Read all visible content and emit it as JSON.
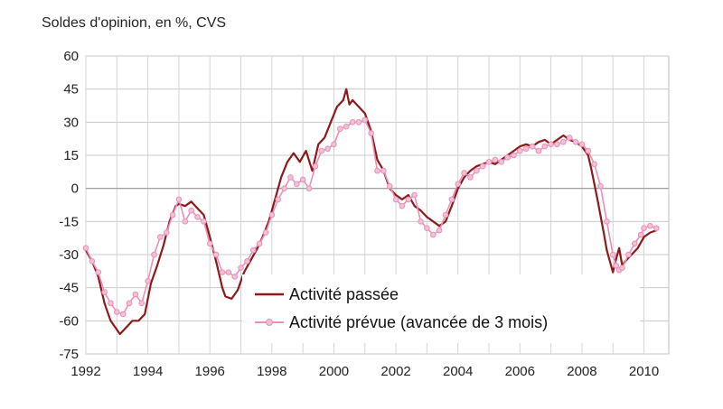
{
  "chart_data": {
    "type": "line",
    "title": "Soldes d'opinion, en %, CVS",
    "xlabel": "",
    "ylabel": "",
    "xlim": [
      1992,
      2010.8
    ],
    "ylim": [
      -75,
      60
    ],
    "x_ticks": [
      1992,
      1994,
      1996,
      1998,
      2000,
      2002,
      2004,
      2006,
      2008,
      2010
    ],
    "x_tick_labels": [
      "1992",
      "1994",
      "1996",
      "1998",
      "2000",
      "2002",
      "2004",
      "2006",
      "2008",
      "2010"
    ],
    "y_ticks": [
      60,
      45,
      30,
      15,
      0,
      -15,
      -30,
      -45,
      -60,
      -75
    ],
    "y_tick_labels": [
      "60",
      "45",
      "30",
      "15",
      "0",
      "-15",
      "-30",
      "-45",
      "-60",
      "-75"
    ],
    "grid": true,
    "legend_position": "bottom-center",
    "series": [
      {
        "name": "Activité passée",
        "color": "#8b1a1a",
        "marker": "none",
        "points": [
          [
            1992.0,
            -28
          ],
          [
            1992.2,
            -33
          ],
          [
            1992.4,
            -40
          ],
          [
            1992.6,
            -52
          ],
          [
            1992.8,
            -60
          ],
          [
            1993.0,
            -64
          ],
          [
            1993.1,
            -66
          ],
          [
            1993.3,
            -63
          ],
          [
            1993.5,
            -60
          ],
          [
            1993.7,
            -60
          ],
          [
            1993.9,
            -57
          ],
          [
            1994.0,
            -50
          ],
          [
            1994.1,
            -43
          ],
          [
            1994.3,
            -35
          ],
          [
            1994.5,
            -26
          ],
          [
            1994.7,
            -15
          ],
          [
            1994.9,
            -8
          ],
          [
            1995.0,
            -7
          ],
          [
            1995.2,
            -8
          ],
          [
            1995.4,
            -6
          ],
          [
            1995.6,
            -9
          ],
          [
            1995.8,
            -12
          ],
          [
            1996.0,
            -22
          ],
          [
            1996.2,
            -33
          ],
          [
            1996.4,
            -45
          ],
          [
            1996.5,
            -49
          ],
          [
            1996.7,
            -50
          ],
          [
            1996.9,
            -46
          ],
          [
            1997.1,
            -38
          ],
          [
            1997.3,
            -33
          ],
          [
            1997.5,
            -28
          ],
          [
            1997.7,
            -22
          ],
          [
            1997.9,
            -15
          ],
          [
            1998.1,
            -5
          ],
          [
            1998.3,
            5
          ],
          [
            1998.5,
            12
          ],
          [
            1998.7,
            16
          ],
          [
            1998.9,
            12
          ],
          [
            1999.1,
            17
          ],
          [
            1999.3,
            8
          ],
          [
            1999.5,
            20
          ],
          [
            1999.7,
            23
          ],
          [
            1999.9,
            30
          ],
          [
            2000.1,
            37
          ],
          [
            2000.3,
            40
          ],
          [
            2000.4,
            45
          ],
          [
            2000.5,
            38
          ],
          [
            2000.6,
            40
          ],
          [
            2000.8,
            37
          ],
          [
            2001.0,
            34
          ],
          [
            2001.2,
            26
          ],
          [
            2001.4,
            13
          ],
          [
            2001.6,
            8
          ],
          [
            2001.8,
            0
          ],
          [
            2002.0,
            -3
          ],
          [
            2002.2,
            -5
          ],
          [
            2002.4,
            -3
          ],
          [
            2002.6,
            -8
          ],
          [
            2002.8,
            -10
          ],
          [
            2003.0,
            -13
          ],
          [
            2003.2,
            -15
          ],
          [
            2003.4,
            -17
          ],
          [
            2003.6,
            -15
          ],
          [
            2003.8,
            -8
          ],
          [
            2004.0,
            0
          ],
          [
            2004.2,
            5
          ],
          [
            2004.4,
            8
          ],
          [
            2004.6,
            10
          ],
          [
            2004.8,
            11
          ],
          [
            2005.0,
            12
          ],
          [
            2005.2,
            11
          ],
          [
            2005.4,
            13
          ],
          [
            2005.6,
            15
          ],
          [
            2005.8,
            17
          ],
          [
            2006.0,
            19
          ],
          [
            2006.2,
            20
          ],
          [
            2006.4,
            19
          ],
          [
            2006.6,
            21
          ],
          [
            2006.8,
            22
          ],
          [
            2007.0,
            20
          ],
          [
            2007.2,
            22
          ],
          [
            2007.4,
            24
          ],
          [
            2007.6,
            22
          ],
          [
            2007.8,
            21
          ],
          [
            2008.0,
            19
          ],
          [
            2008.2,
            15
          ],
          [
            2008.3,
            9
          ],
          [
            2008.5,
            -5
          ],
          [
            2008.7,
            -20
          ],
          [
            2008.8,
            -28
          ],
          [
            2009.0,
            -38
          ],
          [
            2009.1,
            -32
          ],
          [
            2009.2,
            -27
          ],
          [
            2009.3,
            -35
          ],
          [
            2009.4,
            -33
          ],
          [
            2009.6,
            -30
          ],
          [
            2009.8,
            -27
          ],
          [
            2010.0,
            -22
          ],
          [
            2010.2,
            -20
          ],
          [
            2010.4,
            -19
          ]
        ]
      },
      {
        "name": "Activité prévue (avancée de 3 mois)",
        "color": "#e98fb8",
        "marker": "circle",
        "points": [
          [
            1992.0,
            -27
          ],
          [
            1992.2,
            -33
          ],
          [
            1992.4,
            -38
          ],
          [
            1992.6,
            -47
          ],
          [
            1992.8,
            -52
          ],
          [
            1993.0,
            -56
          ],
          [
            1993.2,
            -57
          ],
          [
            1993.4,
            -52
          ],
          [
            1993.6,
            -48
          ],
          [
            1993.8,
            -52
          ],
          [
            1994.0,
            -42
          ],
          [
            1994.2,
            -30
          ],
          [
            1994.4,
            -22
          ],
          [
            1994.6,
            -20
          ],
          [
            1994.8,
            -12
          ],
          [
            1995.0,
            -5
          ],
          [
            1995.2,
            -15
          ],
          [
            1995.4,
            -10
          ],
          [
            1995.6,
            -13
          ],
          [
            1995.8,
            -15
          ],
          [
            1996.0,
            -25
          ],
          [
            1996.2,
            -30
          ],
          [
            1996.4,
            -38
          ],
          [
            1996.6,
            -38
          ],
          [
            1996.8,
            -40
          ],
          [
            1997.0,
            -36
          ],
          [
            1997.2,
            -33
          ],
          [
            1997.4,
            -28
          ],
          [
            1997.6,
            -25
          ],
          [
            1997.8,
            -20
          ],
          [
            1998.0,
            -12
          ],
          [
            1998.2,
            -5
          ],
          [
            1998.4,
            0
          ],
          [
            1998.6,
            5
          ],
          [
            1998.8,
            2
          ],
          [
            1999.0,
            4
          ],
          [
            1999.2,
            0
          ],
          [
            1999.4,
            10
          ],
          [
            1999.6,
            17
          ],
          [
            1999.8,
            18
          ],
          [
            2000.0,
            20
          ],
          [
            2000.2,
            27
          ],
          [
            2000.4,
            28
          ],
          [
            2000.6,
            30
          ],
          [
            2000.8,
            30
          ],
          [
            2001.0,
            31
          ],
          [
            2001.2,
            25
          ],
          [
            2001.4,
            8
          ],
          [
            2001.6,
            8
          ],
          [
            2001.8,
            1
          ],
          [
            2002.0,
            -5
          ],
          [
            2002.2,
            -8
          ],
          [
            2002.4,
            -5
          ],
          [
            2002.6,
            -3
          ],
          [
            2002.8,
            -15
          ],
          [
            2003.0,
            -18
          ],
          [
            2003.2,
            -21
          ],
          [
            2003.4,
            -19
          ],
          [
            2003.6,
            -12
          ],
          [
            2003.8,
            -5
          ],
          [
            2004.0,
            2
          ],
          [
            2004.2,
            7
          ],
          [
            2004.4,
            5
          ],
          [
            2004.6,
            8
          ],
          [
            2004.8,
            10
          ],
          [
            2005.0,
            12
          ],
          [
            2005.2,
            13
          ],
          [
            2005.4,
            12
          ],
          [
            2005.6,
            14
          ],
          [
            2005.8,
            15
          ],
          [
            2006.0,
            17
          ],
          [
            2006.2,
            18
          ],
          [
            2006.4,
            19
          ],
          [
            2006.6,
            17
          ],
          [
            2006.8,
            19
          ],
          [
            2007.0,
            20
          ],
          [
            2007.2,
            20
          ],
          [
            2007.4,
            21
          ],
          [
            2007.6,
            23
          ],
          [
            2007.8,
            21
          ],
          [
            2008.0,
            20
          ],
          [
            2008.2,
            17
          ],
          [
            2008.4,
            11
          ],
          [
            2008.6,
            1
          ],
          [
            2008.8,
            -15
          ],
          [
            2009.0,
            -30
          ],
          [
            2009.1,
            -35
          ],
          [
            2009.2,
            -37
          ],
          [
            2009.3,
            -36
          ],
          [
            2009.5,
            -30
          ],
          [
            2009.7,
            -25
          ],
          [
            2009.9,
            -21
          ],
          [
            2010.0,
            -18
          ],
          [
            2010.2,
            -17
          ],
          [
            2010.4,
            -18
          ]
        ]
      }
    ]
  }
}
